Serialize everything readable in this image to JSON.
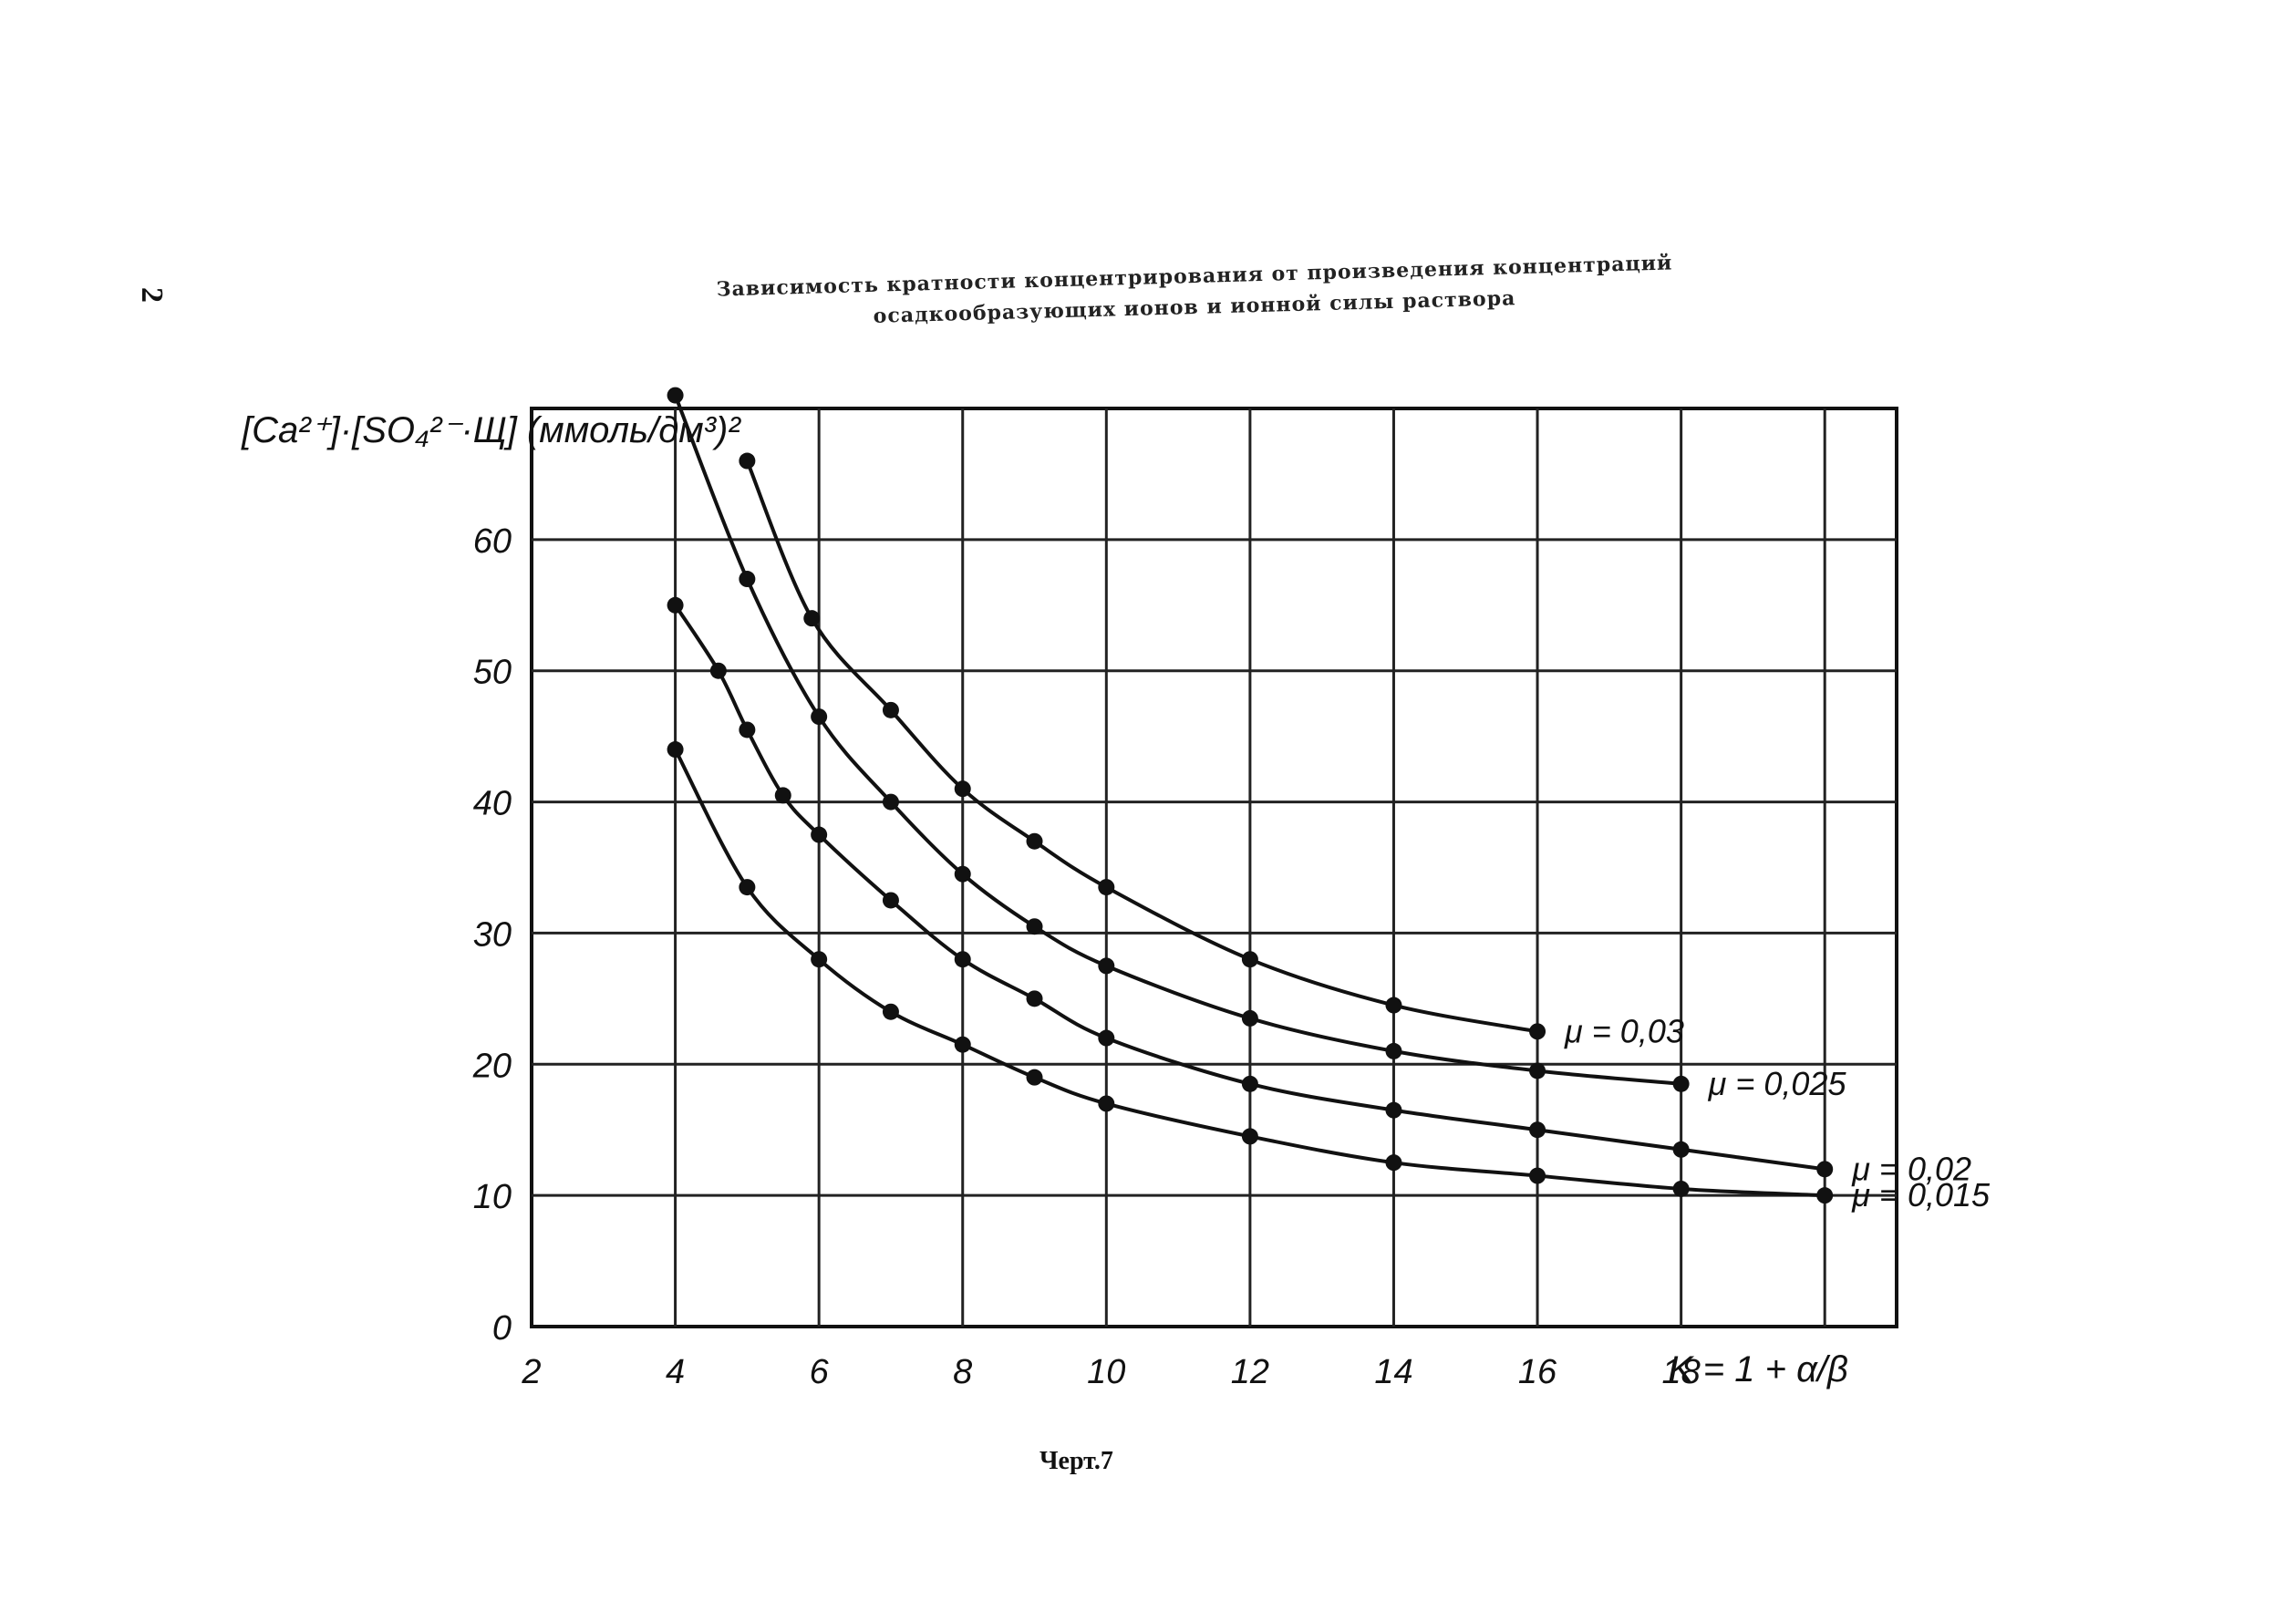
{
  "page": {
    "page_number": "2",
    "caption": "Черт.7"
  },
  "chart_data": {
    "type": "line",
    "title_lines": [
      "Зависимость кратности концентрирования от произведения концентраций",
      "осадкообразующих ионов и ионной силы раствора"
    ],
    "xlabel": "K = 1 + α/β",
    "ylabel": "[Ca²⁺]·[SO₄²⁻·Щ] (ммоль/дм³)²",
    "xlim": [
      2,
      21
    ],
    "ylim": [
      0,
      70
    ],
    "x_ticks": [
      2,
      4,
      6,
      8,
      10,
      12,
      14,
      16,
      18
    ],
    "y_ticks": [
      0,
      10,
      20,
      30,
      40,
      50,
      60
    ],
    "grid": true,
    "legend": "inline labels at curve ends",
    "colors": {
      "ink": "#111111",
      "grid": "#222222"
    },
    "series": [
      {
        "name": "μ = 0,03",
        "x": [
          5,
          5.9,
          7,
          8,
          9,
          10,
          12,
          14,
          16
        ],
        "y": [
          66,
          54,
          47,
          41,
          37,
          33.5,
          28,
          24.5,
          22.5
        ]
      },
      {
        "name": "μ = 0,025",
        "x": [
          4,
          5,
          6,
          7,
          8,
          9,
          10,
          12,
          14,
          16,
          18
        ],
        "y": [
          71,
          57,
          46.5,
          40,
          34.5,
          30.5,
          27.5,
          23.5,
          21,
          19.5,
          18.5
        ]
      },
      {
        "name": "μ = 0,02",
        "x": [
          4,
          4.6,
          5,
          5.5,
          6,
          7,
          8,
          9,
          10,
          12,
          14,
          16,
          18,
          20
        ],
        "y": [
          55,
          50,
          45.5,
          40.5,
          37.5,
          32.5,
          28,
          25,
          22,
          18.5,
          16.5,
          15,
          13.5,
          12
        ]
      },
      {
        "name": "μ = 0,015",
        "x": [
          4,
          5,
          6,
          7,
          8,
          9,
          10,
          12,
          14,
          16,
          18,
          20
        ],
        "y": [
          44,
          33.5,
          28,
          24,
          21.5,
          19,
          17,
          14.5,
          12.5,
          11.5,
          10.5,
          10
        ]
      }
    ]
  }
}
